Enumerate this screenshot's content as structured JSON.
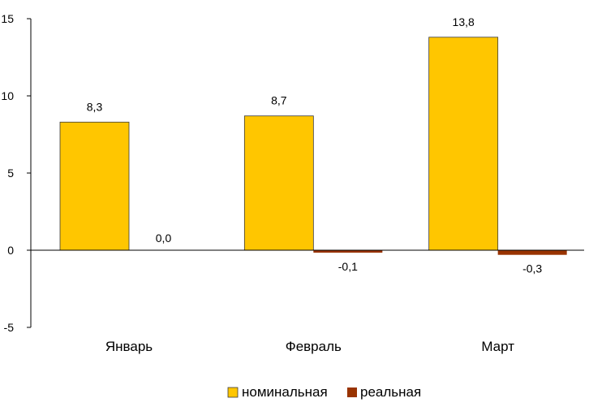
{
  "chart_data": {
    "type": "bar",
    "categories": [
      "Январь",
      "Февраль",
      "Март"
    ],
    "series": [
      {
        "name": "номинальная",
        "values": [
          8.3,
          8.7,
          13.8
        ],
        "labels": [
          "8,3",
          "8,7",
          "13,8"
        ],
        "color": "#FFC600"
      },
      {
        "name": "реальная",
        "values": [
          0.0,
          -0.1,
          -0.3
        ],
        "labels": [
          "0,0",
          "-0,1",
          "-0,3"
        ],
        "color": "#993300"
      }
    ],
    "title": "",
    "xlabel": "",
    "ylabel": "",
    "ylim": [
      -5,
      15
    ],
    "yticks": [
      15,
      10,
      5,
      0,
      -5
    ],
    "grid": false,
    "legend_position": "bottom-center"
  }
}
